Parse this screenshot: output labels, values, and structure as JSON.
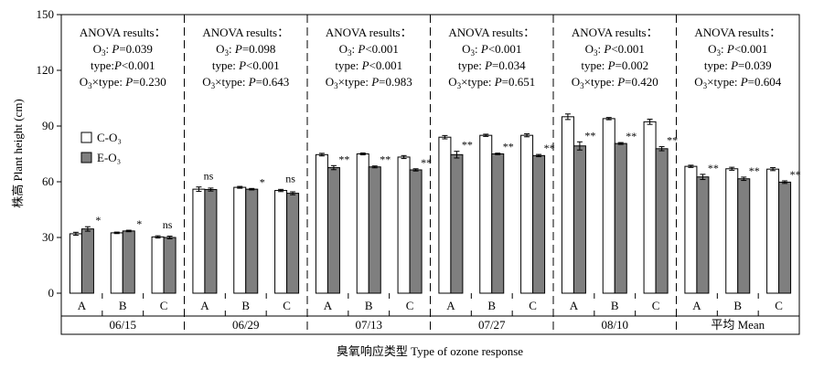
{
  "colors": {
    "c_o3": "#ffffff",
    "e_o3": "#7f7f7f",
    "stroke": "#000000"
  },
  "chart_data": {
    "type": "bar",
    "ylabel": "株高 Plant height (cm)",
    "xlabel": "臭氧响应类型 Type of ozone response",
    "ylim": [
      0,
      150
    ],
    "yticks": [
      0,
      30,
      60,
      90,
      120,
      150
    ],
    "legend": {
      "position": "left",
      "entries": [
        "C-O₃",
        "E-O₃"
      ]
    },
    "series_names": [
      "C-O₃",
      "E-O₃"
    ],
    "groups": [
      {
        "label": "06/15",
        "anova": [
          "ANOVA results：",
          "O₃: P=0.039",
          "type:P<0.001",
          "O₃×type: P=0.230"
        ],
        "categories": [
          "A",
          "B",
          "C"
        ],
        "c_o3": [
          32,
          32.5,
          30.3
        ],
        "c_o3_err": [
          0.8,
          0.4,
          0.6
        ],
        "e_o3": [
          34.6,
          33.5,
          30
        ],
        "e_o3_err": [
          1.2,
          0.4,
          0.7
        ],
        "sig": [
          "*",
          "*",
          "ns"
        ]
      },
      {
        "label": "06/29",
        "anova": [
          "ANOVA results：",
          "O₃: P=0.098",
          "type: P<0.001",
          "O₃×type: P=0.643"
        ],
        "categories": [
          "A",
          "B",
          "C"
        ],
        "c_o3": [
          56,
          57,
          55.3
        ],
        "c_o3_err": [
          1.2,
          0.5,
          0.6
        ],
        "e_o3": [
          55.8,
          56,
          53.8
        ],
        "e_o3_err": [
          0.8,
          0.4,
          0.8
        ],
        "sig": [
          "ns",
          "*",
          "ns"
        ]
      },
      {
        "label": "07/13",
        "anova": [
          "ANOVA results：",
          "O₃: P<0.001",
          "type: P<0.001",
          "O₃×type: P=0.983"
        ],
        "categories": [
          "A",
          "B",
          "C"
        ],
        "c_o3": [
          74.6,
          75,
          73.3
        ],
        "c_o3_err": [
          0.7,
          0.5,
          0.8
        ],
        "e_o3": [
          67.6,
          68,
          66.4
        ],
        "e_o3_err": [
          1.1,
          0.5,
          0.6
        ],
        "sig": [
          "**",
          "**",
          "**"
        ]
      },
      {
        "label": "07/27",
        "anova": [
          "ANOVA results：",
          "O₃: P<0.001",
          "type: P=0.034",
          "O₃×type: P=0.651"
        ],
        "categories": [
          "A",
          "B",
          "C"
        ],
        "c_o3": [
          84,
          85,
          85
        ],
        "c_o3_err": [
          0.9,
          0.6,
          0.8
        ],
        "e_o3": [
          74.6,
          75,
          74.1
        ],
        "e_o3_err": [
          1.8,
          0.4,
          0.6
        ],
        "sig": [
          "**",
          "**",
          "**"
        ]
      },
      {
        "label": "08/10",
        "anova": [
          "ANOVA results：",
          "O₃: P<0.001",
          "type: P=0.002",
          "O₃×type: P=0.420"
        ],
        "categories": [
          "A",
          "B",
          "C"
        ],
        "c_o3": [
          95,
          94,
          92.3
        ],
        "c_o3_err": [
          1.5,
          0.6,
          1.4
        ],
        "e_o3": [
          79.3,
          80.6,
          77.8
        ],
        "e_o3_err": [
          2.2,
          0.5,
          1.1
        ],
        "sig": [
          "**",
          "**",
          "**"
        ]
      },
      {
        "label": "平均 Mean",
        "anova": [
          "ANOVA results：",
          "O₃: P<0.001",
          "type: P=0.039",
          "O₃×type: P=0.604"
        ],
        "categories": [
          "A",
          "B",
          "C"
        ],
        "c_o3": [
          68.3,
          67,
          66.8
        ],
        "c_o3_err": [
          0.6,
          0.8,
          0.8
        ],
        "e_o3": [
          62.6,
          61.6,
          59.8
        ],
        "e_o3_err": [
          1.4,
          0.9,
          0.7
        ],
        "sig": [
          "**",
          "**",
          "**"
        ]
      }
    ]
  }
}
